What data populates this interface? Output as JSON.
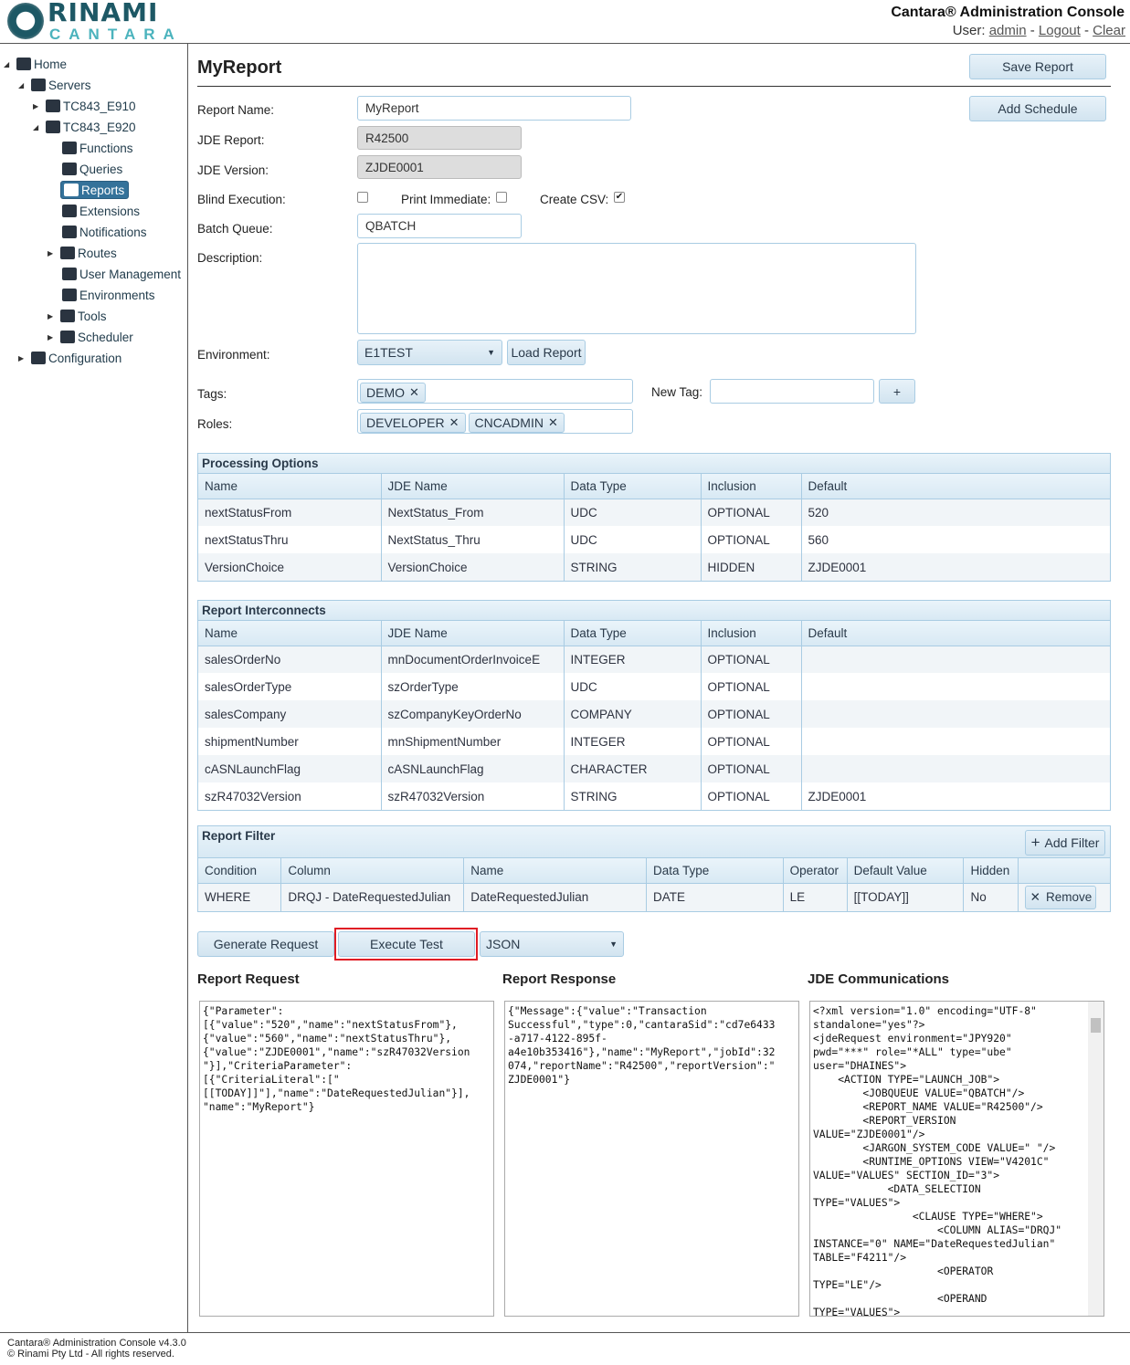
{
  "header": {
    "logo_top": "RINAMI",
    "logo_bottom": "CANTARA",
    "app_title": "Cantara® Administration Console",
    "user_label": "User:",
    "user": "admin",
    "sep": "-",
    "logout": "Logout",
    "clear": "Clear"
  },
  "sidebar": {
    "items": [
      {
        "label": "Home",
        "icon": "home-icon",
        "toggle": "◢"
      },
      {
        "label": "Servers",
        "icon": "servers-icon",
        "toggle": "◢"
      },
      {
        "label": "TC843_E910",
        "icon": "server-icon",
        "toggle": "▶"
      },
      {
        "label": "TC843_E920",
        "icon": "server-icon",
        "toggle": "◢"
      },
      {
        "label": "Functions",
        "icon": "function-file-icon",
        "toggle": ""
      },
      {
        "label": "Queries",
        "icon": "database-icon",
        "toggle": ""
      },
      {
        "label": "Reports",
        "icon": "printer-icon",
        "toggle": "",
        "selected": true
      },
      {
        "label": "Extensions",
        "icon": "puzzle-icon",
        "toggle": ""
      },
      {
        "label": "Notifications",
        "icon": "envelope-icon",
        "toggle": ""
      },
      {
        "label": "Routes",
        "icon": "routes-icon",
        "toggle": "▶"
      },
      {
        "label": "User Management",
        "icon": "users-icon",
        "toggle": ""
      },
      {
        "label": "Environments",
        "icon": "globe-icon",
        "toggle": ""
      },
      {
        "label": "Tools",
        "icon": "toolbox-icon",
        "toggle": "▶"
      },
      {
        "label": "Scheduler",
        "icon": "scheduler-icon",
        "toggle": "▶"
      },
      {
        "label": "Configuration",
        "icon": "gear-icon",
        "toggle": "▶"
      }
    ]
  },
  "main": {
    "title": "MyReport",
    "save_report": "Save Report",
    "add_schedule": "Add Schedule",
    "form": {
      "report_name_label": "Report Name:",
      "report_name": "MyReport",
      "jde_report_label": "JDE Report:",
      "jde_report": "R42500",
      "jde_version_label": "JDE Version:",
      "jde_version": "ZJDE0001",
      "blind_label": "Blind Execution:",
      "blind": false,
      "print_label": "Print Immediate:",
      "print": false,
      "csv_label": "Create CSV:",
      "csv": true,
      "batch_label": "Batch Queue:",
      "batch": "QBATCH",
      "desc_label": "Description:",
      "description": "",
      "env_label": "Environment:",
      "environment": "E1TEST",
      "load_report": "Load Report",
      "tags_label": "Tags:",
      "tags": [
        "DEMO"
      ],
      "new_tag_label": "New Tag:",
      "new_tag": "",
      "add_tag": "+",
      "roles_label": "Roles:",
      "roles": [
        "DEVELOPER",
        "CNCADMIN"
      ]
    },
    "processing_options": {
      "title": "Processing Options",
      "columns": [
        "Name",
        "JDE Name",
        "Data Type",
        "Inclusion",
        "Default"
      ],
      "rows": [
        [
          "nextStatusFrom",
          "NextStatus_From",
          "UDC",
          "OPTIONAL",
          "520"
        ],
        [
          "nextStatusThru",
          "NextStatus_Thru",
          "UDC",
          "OPTIONAL",
          "560"
        ],
        [
          "VersionChoice",
          "VersionChoice",
          "STRING",
          "HIDDEN",
          "ZJDE0001"
        ]
      ]
    },
    "interconnects": {
      "title": "Report Interconnects",
      "columns": [
        "Name",
        "JDE Name",
        "Data Type",
        "Inclusion",
        "Default"
      ],
      "rows": [
        [
          "salesOrderNo",
          "mnDocumentOrderInvoiceE",
          "INTEGER",
          "OPTIONAL",
          ""
        ],
        [
          "salesOrderType",
          "szOrderType",
          "UDC",
          "OPTIONAL",
          ""
        ],
        [
          "salesCompany",
          "szCompanyKeyOrderNo",
          "COMPANY",
          "OPTIONAL",
          ""
        ],
        [
          "shipmentNumber",
          "mnShipmentNumber",
          "INTEGER",
          "OPTIONAL",
          ""
        ],
        [
          "cASNLaunchFlag",
          "cASNLaunchFlag",
          "CHARACTER",
          "OPTIONAL",
          ""
        ],
        [
          "szR47032Version",
          "szR47032Version",
          "STRING",
          "OPTIONAL",
          "ZJDE0001"
        ]
      ]
    },
    "filter": {
      "title": "Report Filter",
      "add_filter": "Add Filter",
      "columns": [
        "Condition",
        "Column",
        "Name",
        "Data Type",
        "Operator",
        "Default Value",
        "Hidden",
        ""
      ],
      "rows": [
        [
          "WHERE",
          "DRQJ - DateRequestedJulian",
          "DateRequestedJulian",
          "DATE",
          "LE",
          "[[TODAY]]",
          "No"
        ]
      ],
      "remove": "Remove"
    },
    "actions": {
      "generate": "Generate Request",
      "execute": "Execute Test",
      "format": "JSON"
    },
    "request": {
      "title": "Report Request",
      "body": "{\"Parameter\":\n[{\"value\":\"520\",\"name\":\"nextStatusFrom\"},\n{\"value\":\"560\",\"name\":\"nextStatusThru\"},\n{\"value\":\"ZJDE0001\",\"name\":\"szR47032Version\n\"}],\"CriteriaParameter\":\n[{\"CriteriaLiteral\":[\"\n[[TODAY]]\"],\"name\":\"DateRequestedJulian\"}],\n\"name\":\"MyReport\"}"
    },
    "response": {
      "title": "Report Response",
      "body": "{\"Message\":{\"value\":\"Transaction\nSuccessful\",\"type\":0,\"cantaraSid\":\"cd7e6433\n-a717-4122-895f-\na4e10b353416\"},\"name\":\"MyReport\",\"jobId\":32\n074,\"reportName\":\"R42500\",\"reportVersion\":\"\nZJDE0001\"}"
    },
    "jde": {
      "title": "JDE Communications",
      "body": "<?xml version=\"1.0\" encoding=\"UTF-8\"\nstandalone=\"yes\"?>\n<jdeRequest environment=\"JPY920\"\npwd=\"***\" role=\"*ALL\" type=\"ube\"\nuser=\"DHAINES\">\n    <ACTION TYPE=\"LAUNCH_JOB\">\n        <JOBQUEUE VALUE=\"QBATCH\"/>\n        <REPORT_NAME VALUE=\"R42500\"/>\n        <REPORT_VERSION\nVALUE=\"ZJDE0001\"/>\n        <JARGON_SYSTEM_CODE VALUE=\" \"/>\n        <RUNTIME_OPTIONS VIEW=\"V4201C\"\nVALUE=\"VALUES\" SECTION_ID=\"3\">\n            <DATA_SELECTION\nTYPE=\"VALUES\">\n                <CLAUSE TYPE=\"WHERE\">\n                    <COLUMN ALIAS=\"DRQJ\"\nINSTANCE=\"0\" NAME=\"DateRequestedJulian\"\nTABLE=\"F4211\"/>\n                    <OPERATOR\nTYPE=\"LE\"/>\n                    <OPERAND\nTYPE=\"VALUES\">"
    }
  },
  "footer": {
    "line1": "Cantara® Administration Console v4.3.0",
    "line2": "© Rinami Pty Ltd - All rights reserved."
  },
  "colors": {
    "accent": "#34729a",
    "border": "#a9cce3",
    "highlight": "#e01c24"
  }
}
